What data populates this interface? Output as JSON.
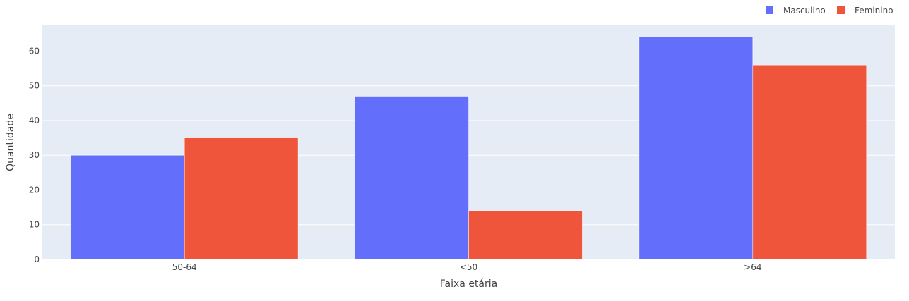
{
  "colors": {
    "plot_bg": "#e5ecf6",
    "grid": "#ffffff",
    "text": "#444444",
    "masculino": "#636efa",
    "feminino": "#ef553b"
  },
  "chart_data": {
    "type": "bar",
    "barmode": "group",
    "title": "",
    "xlabel": "Faixa etária",
    "ylabel": "Quantidade",
    "categories": [
      "50-64",
      "<50",
      ">64"
    ],
    "series": [
      {
        "name": "Masculino",
        "color": "#636efa",
        "values": [
          30,
          47,
          64
        ]
      },
      {
        "name": "Feminino",
        "color": "#ef553b",
        "values": [
          35,
          14,
          56
        ]
      }
    ],
    "ylim": [
      0,
      67.4
    ],
    "yticks": [
      0,
      10,
      20,
      30,
      40,
      50,
      60
    ],
    "grid": true,
    "legend_position": "top-right"
  }
}
